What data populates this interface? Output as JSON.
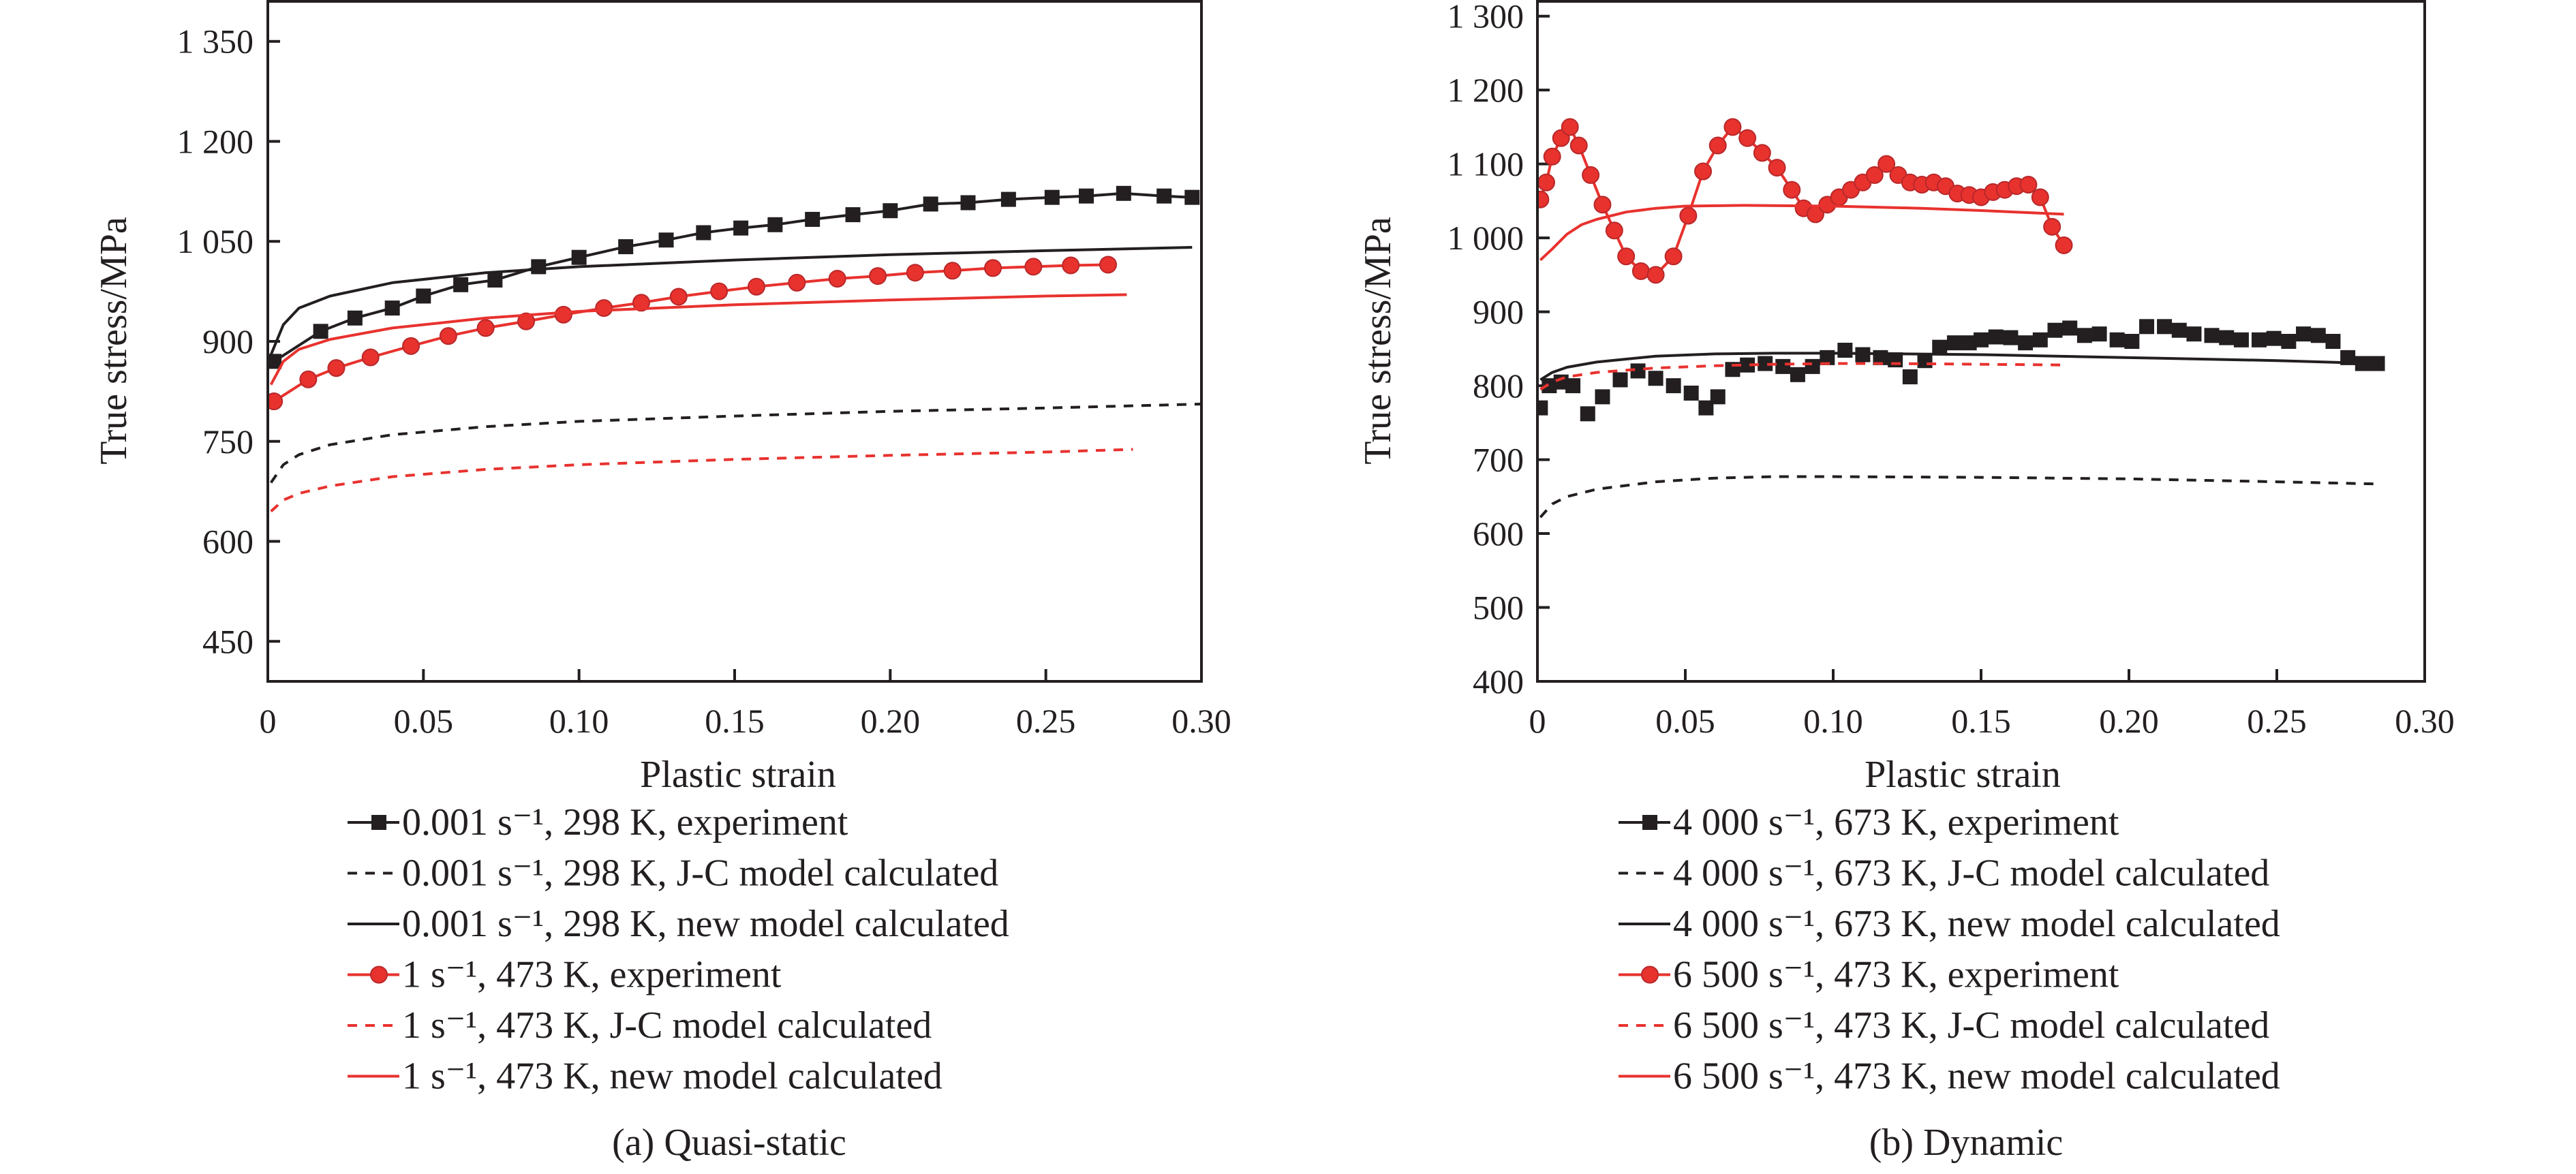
{
  "chart_data": [
    {
      "type": "line",
      "caption": "(a) Quasi-static",
      "xlabel": "Plastic strain",
      "ylabel": "True stress/MPa",
      "xlim": [
        0,
        0.3
      ],
      "ylim": [
        390,
        1410
      ],
      "x_ticks": [
        "0",
        "0.05",
        "0.10",
        "0.15",
        "0.20",
        "0.25",
        "0.30"
      ],
      "y_ticks": [
        "450",
        "600",
        "750",
        "900",
        "1 050",
        "1 200",
        "1 350"
      ],
      "y_tick_values": [
        450,
        600,
        750,
        900,
        1050,
        1200,
        1350
      ],
      "series": [
        {
          "name": "0.001 s⁻¹, 298 K, experiment",
          "color": "#231f20",
          "line": "solid",
          "marker": "square",
          "x": [
            0.002,
            0.017,
            0.028,
            0.04,
            0.05,
            0.062,
            0.073,
            0.087,
            0.1,
            0.115,
            0.128,
            0.14,
            0.152,
            0.163,
            0.175,
            0.188,
            0.2,
            0.213,
            0.225,
            0.238,
            0.252,
            0.263,
            0.275,
            0.288,
            0.297
          ],
          "y": [
            870,
            915,
            935,
            950,
            968,
            985,
            992,
            1012,
            1026,
            1042,
            1052,
            1063,
            1070,
            1075,
            1083,
            1090,
            1096,
            1106,
            1108,
            1113,
            1116,
            1118,
            1122,
            1118,
            1116
          ]
        },
        {
          "name": "0.001 s⁻¹, 298 K, J-C model calculated",
          "color": "#231f20",
          "line": "dashed",
          "marker": "none",
          "x": [
            0.001,
            0.005,
            0.01,
            0.02,
            0.04,
            0.07,
            0.1,
            0.15,
            0.2,
            0.25,
            0.3
          ],
          "y": [
            688,
            715,
            730,
            745,
            760,
            772,
            780,
            788,
            795,
            800,
            806
          ]
        },
        {
          "name": "0.001 s⁻¹, 298 K, new model calculated",
          "color": "#231f20",
          "line": "solid",
          "marker": "none",
          "x": [
            0.001,
            0.005,
            0.01,
            0.02,
            0.04,
            0.07,
            0.1,
            0.15,
            0.2,
            0.25,
            0.297
          ],
          "y": [
            880,
            925,
            950,
            968,
            988,
            1003,
            1012,
            1022,
            1030,
            1036,
            1041
          ]
        },
        {
          "name": "1 s⁻¹, 473 K, experiment",
          "color": "#e8322e",
          "line": "solid",
          "marker": "circle",
          "x": [
            0.002,
            0.013,
            0.022,
            0.033,
            0.046,
            0.058,
            0.07,
            0.083,
            0.095,
            0.108,
            0.12,
            0.132,
            0.145,
            0.157,
            0.17,
            0.183,
            0.196,
            0.208,
            0.22,
            0.233,
            0.246,
            0.258,
            0.27
          ],
          "y": [
            810,
            843,
            860,
            876,
            893,
            908,
            920,
            930,
            940,
            950,
            958,
            967,
            975,
            982,
            988,
            994,
            998,
            1003,
            1006,
            1010,
            1012,
            1014,
            1015
          ]
        },
        {
          "name": "1 s⁻¹, 473 K, J-C model calculated",
          "color": "#e8322e",
          "line": "dashed",
          "marker": "none",
          "x": [
            0.001,
            0.005,
            0.01,
            0.02,
            0.04,
            0.07,
            0.1,
            0.15,
            0.2,
            0.25,
            0.278
          ],
          "y": [
            645,
            662,
            672,
            683,
            697,
            708,
            715,
            723,
            729,
            734,
            738
          ]
        },
        {
          "name": "1 s⁻¹, 473 K, new model calculated",
          "color": "#e8322e",
          "line": "solid",
          "marker": "none",
          "x": [
            0.001,
            0.005,
            0.01,
            0.02,
            0.04,
            0.07,
            0.1,
            0.15,
            0.2,
            0.25,
            0.276
          ],
          "y": [
            835,
            870,
            888,
            903,
            920,
            935,
            945,
            955,
            962,
            968,
            970
          ]
        }
      ]
    },
    {
      "type": "line",
      "caption": "(b) Dynamic",
      "xlabel": "Plastic strain",
      "ylabel": "True stress/MPa",
      "xlim": [
        0,
        0.3
      ],
      "ylim": [
        400,
        1320
      ],
      "x_ticks": [
        "0",
        "0.05",
        "0.10",
        "0.15",
        "0.20",
        "0.25",
        "0.30"
      ],
      "y_ticks": [
        "400",
        "500",
        "600",
        "700",
        "800",
        "900",
        "1 000",
        "1 100",
        "1 200",
        "1 300"
      ],
      "y_tick_values": [
        400,
        500,
        600,
        700,
        800,
        900,
        1000,
        1100,
        1200,
        1300
      ],
      "series": [
        {
          "name": "4 000 s⁻¹, 673 K, experiment",
          "color": "#231f20",
          "line": "none",
          "marker": "square",
          "x": [
            0.001,
            0.004,
            0.008,
            0.012,
            0.017,
            0.022,
            0.028,
            0.034,
            0.04,
            0.046,
            0.052,
            0.057,
            0.061,
            0.066,
            0.071,
            0.077,
            0.083,
            0.088,
            0.093,
            0.098,
            0.104,
            0.11,
            0.116,
            0.121,
            0.126,
            0.131,
            0.136,
            0.141,
            0.146,
            0.15,
            0.155,
            0.16,
            0.165,
            0.17,
            0.175,
            0.18,
            0.185,
            0.19,
            0.196,
            0.201,
            0.206,
            0.212,
            0.217,
            0.222,
            0.228,
            0.233,
            0.238,
            0.244,
            0.249,
            0.254,
            0.259,
            0.264,
            0.269,
            0.274,
            0.279,
            0.284
          ],
          "y": [
            770,
            800,
            805,
            800,
            762,
            785,
            808,
            820,
            810,
            800,
            790,
            770,
            785,
            822,
            828,
            830,
            826,
            815,
            826,
            838,
            848,
            842,
            838,
            835,
            812,
            834,
            852,
            858,
            858,
            862,
            866,
            865,
            858,
            862,
            875,
            878,
            868,
            870,
            862,
            860,
            880,
            880,
            875,
            870,
            868,
            865,
            862,
            862,
            864,
            860,
            870,
            868,
            860,
            838,
            830,
            830
          ]
        },
        {
          "name": "4 000 s⁻¹, 673 K, J-C model calculated",
          "color": "#231f20",
          "line": "dashed",
          "marker": "none",
          "x": [
            0.001,
            0.005,
            0.01,
            0.02,
            0.04,
            0.06,
            0.08,
            0.1,
            0.15,
            0.2,
            0.25,
            0.285
          ],
          "y": [
            622,
            640,
            650,
            660,
            670,
            675,
            677,
            677,
            676,
            674,
            670,
            667
          ]
        },
        {
          "name": "4 000 s⁻¹, 673 K, new model calculated",
          "color": "#231f20",
          "line": "solid",
          "marker": "none",
          "x": [
            0.001,
            0.005,
            0.01,
            0.02,
            0.04,
            0.06,
            0.08,
            0.1,
            0.15,
            0.2,
            0.25,
            0.283
          ],
          "y": [
            808,
            818,
            825,
            832,
            840,
            843,
            844,
            844,
            842,
            838,
            834,
            830
          ]
        },
        {
          "name": "6 500 s⁻¹, 473 K, experiment",
          "color": "#e8322e",
          "line": "solid",
          "marker": "circle",
          "x": [
            0.001,
            0.003,
            0.005,
            0.008,
            0.011,
            0.014,
            0.018,
            0.022,
            0.026,
            0.03,
            0.035,
            0.04,
            0.046,
            0.051,
            0.056,
            0.061,
            0.066,
            0.071,
            0.076,
            0.081,
            0.086,
            0.09,
            0.094,
            0.098,
            0.102,
            0.106,
            0.11,
            0.114,
            0.118,
            0.122,
            0.126,
            0.13,
            0.134,
            0.138,
            0.142,
            0.146,
            0.15,
            0.154,
            0.158,
            0.162,
            0.166,
            0.17,
            0.174,
            0.178
          ],
          "y": [
            1052,
            1075,
            1110,
            1135,
            1150,
            1125,
            1085,
            1045,
            1010,
            975,
            955,
            950,
            975,
            1030,
            1090,
            1125,
            1150,
            1135,
            1115,
            1095,
            1065,
            1040,
            1032,
            1045,
            1055,
            1065,
            1075,
            1085,
            1100,
            1085,
            1075,
            1072,
            1075,
            1070,
            1060,
            1058,
            1055,
            1062,
            1065,
            1070,
            1072,
            1055,
            1015,
            990
          ]
        },
        {
          "name": "6 500 s⁻¹, 473 K, J-C model calculated",
          "color": "#e8322e",
          "line": "dashed",
          "marker": "none",
          "x": [
            0.001,
            0.005,
            0.01,
            0.02,
            0.04,
            0.06,
            0.08,
            0.1,
            0.12,
            0.15,
            0.178
          ],
          "y": [
            795,
            805,
            812,
            818,
            824,
            827,
            829,
            830,
            830,
            829,
            828
          ]
        },
        {
          "name": "6 500 s⁻¹, 473 K, new model calculated",
          "color": "#e8322e",
          "line": "solid",
          "marker": "none",
          "x": [
            0.001,
            0.005,
            0.01,
            0.015,
            0.02,
            0.03,
            0.04,
            0.05,
            0.07,
            0.1,
            0.13,
            0.15,
            0.178
          ],
          "y": [
            970,
            985,
            1005,
            1018,
            1025,
            1035,
            1040,
            1043,
            1044,
            1043,
            1040,
            1037,
            1032
          ]
        }
      ]
    }
  ]
}
